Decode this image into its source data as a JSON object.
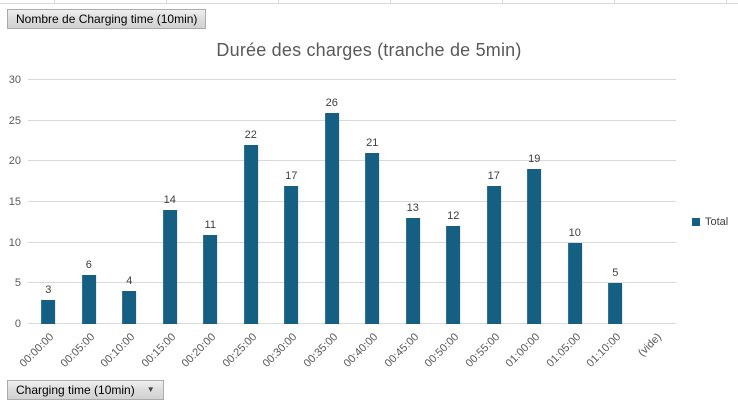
{
  "field_buttons": {
    "value_button": "Nombre de Charging time (10min)",
    "axis_button": "Charging time (10min)",
    "dropdown_arrow": "▼"
  },
  "chart_data": {
    "type": "bar",
    "title": "Durée des charges (tranche de 5min)",
    "categories": [
      "00:00:00",
      "00:05:00",
      "00:10:00",
      "00:15:00",
      "00:20:00",
      "00:25:00",
      "00:30:00",
      "00:35:00",
      "00:40:00",
      "00:45:00",
      "00:50:00",
      "00:55:00",
      "01:00:00",
      "01:05:00",
      "01:10:00",
      "(vide)"
    ],
    "series": [
      {
        "name": "Total",
        "values": [
          3,
          6,
          4,
          14,
          11,
          22,
          17,
          26,
          21,
          13,
          12,
          17,
          19,
          10,
          5,
          null
        ]
      }
    ],
    "ylim": [
      0,
      30
    ],
    "yticks": [
      0,
      5,
      10,
      15,
      20,
      25,
      30
    ],
    "grid": true,
    "data_labels": true,
    "legend_position": "right",
    "bar_color": "#156082"
  },
  "colors": {
    "bar": "#156082",
    "gridline": "#d9d9d9",
    "axis_text": "#595959",
    "title_text": "#595959",
    "data_label_text": "#404040",
    "legend_text": "#404040",
    "button_border": "#ababab"
  }
}
